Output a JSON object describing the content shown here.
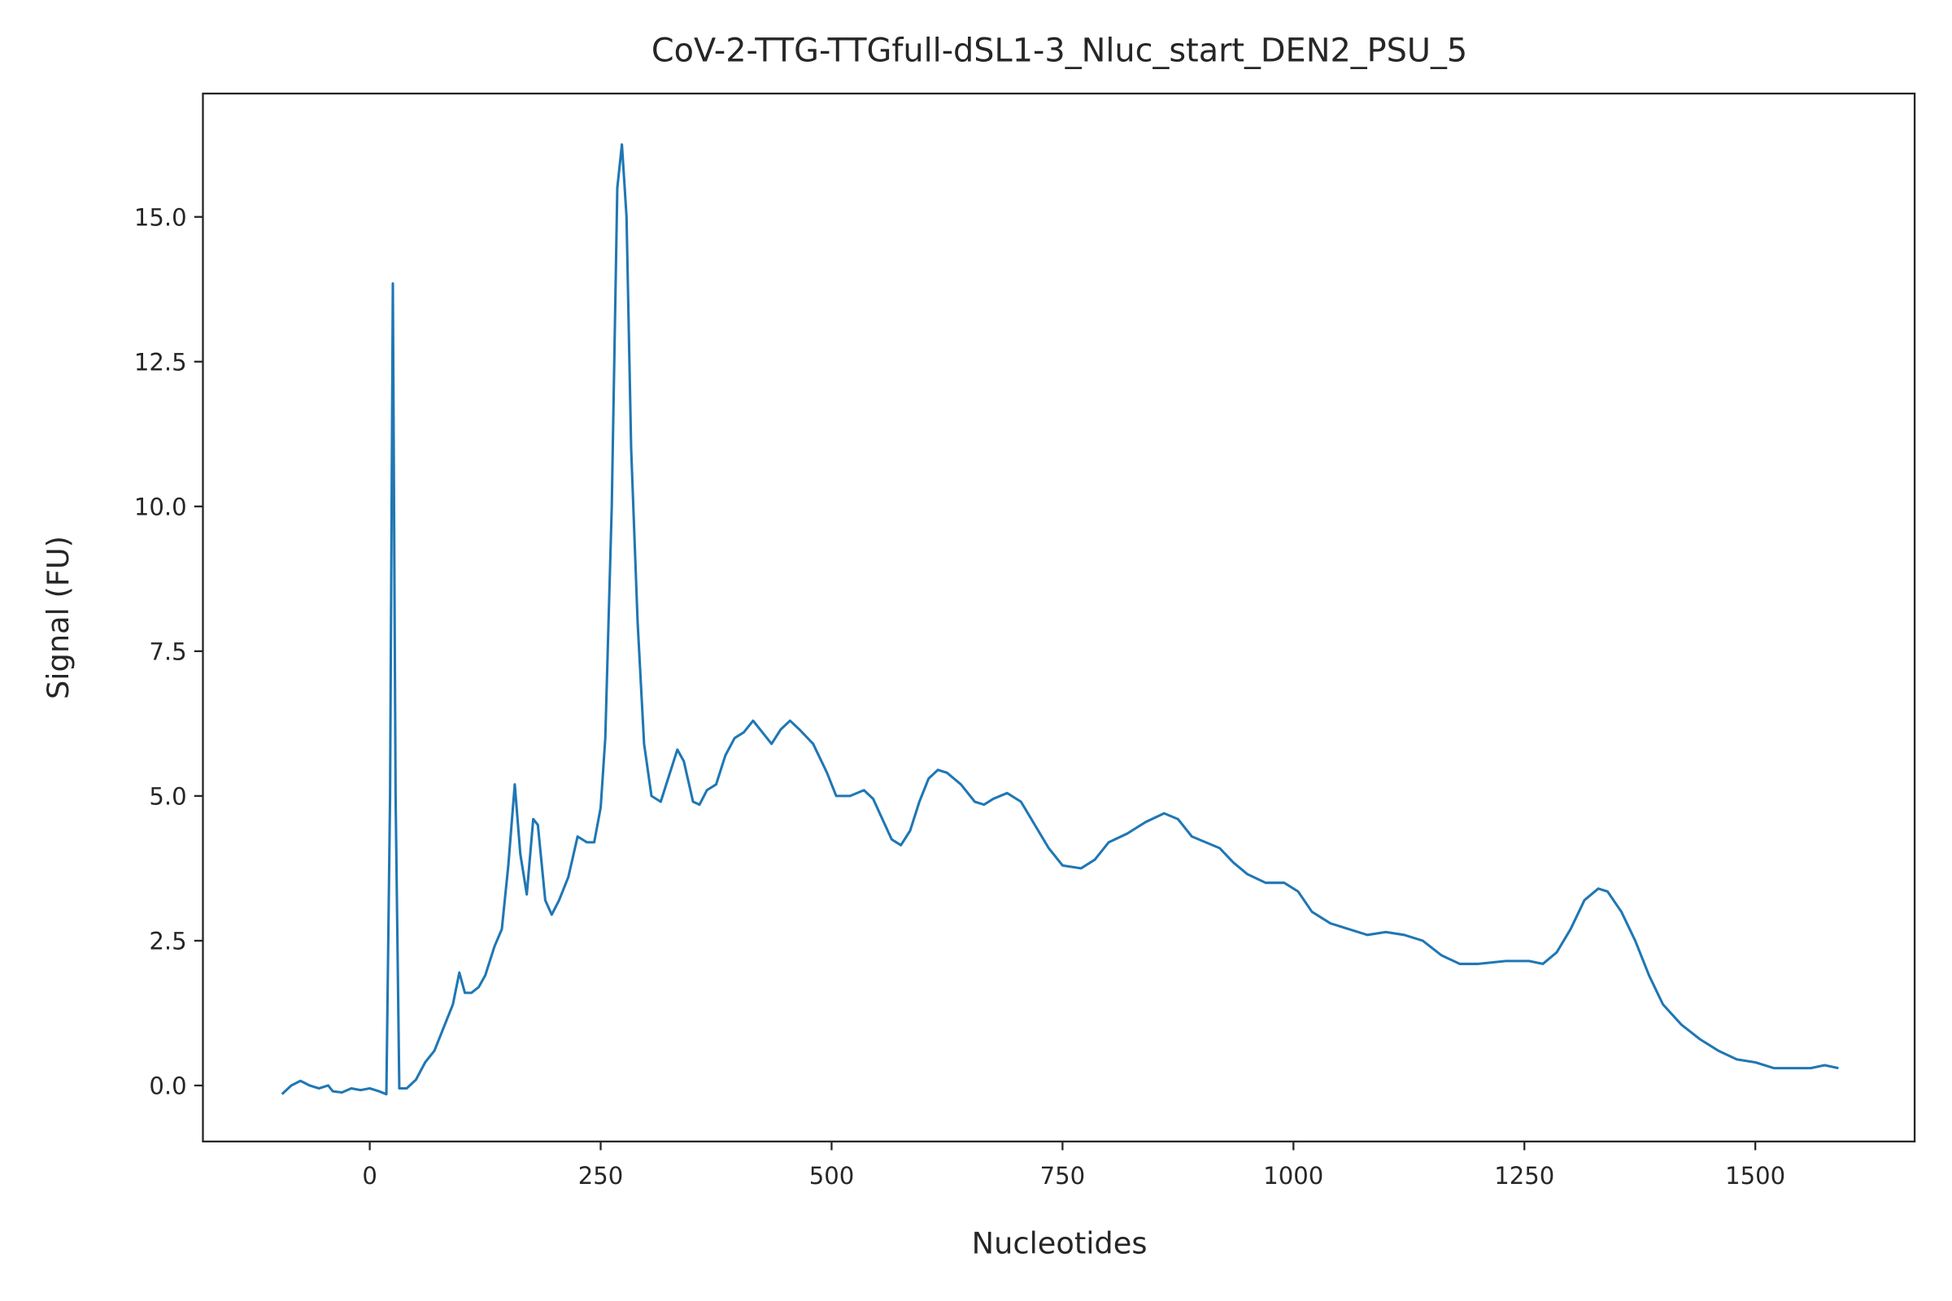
{
  "chart_data": {
    "type": "line",
    "title": "CoV-2-TTG-TTGfull-dSL1-3_Nluc_start_DEN2_PSU_5",
    "x_label": "Nucleotides",
    "y_label": "Signal (FU)",
    "xlim": [
      -180.6,
      1672.5
    ],
    "ylim": [
      -0.967,
      17.13
    ],
    "xticks": [
      0,
      250,
      500,
      750,
      1000,
      1250,
      1500
    ],
    "yticks": [
      {
        "value": 0,
        "label": "0.0"
      },
      2.5,
      {
        "value": 5,
        "label": "5.0"
      },
      7.5,
      {
        "value": 10,
        "label": "10.0"
      },
      12.5,
      {
        "value": 15,
        "label": "15.0"
      }
    ],
    "grid": false,
    "x": [
      -95,
      -85,
      -75,
      -65,
      -55,
      -45,
      -40,
      -30,
      -20,
      -10,
      0,
      10,
      18,
      22,
      25,
      28,
      32,
      40,
      50,
      60,
      70,
      80,
      90,
      97,
      103,
      110,
      118,
      125,
      135,
      143,
      150,
      157,
      163,
      170,
      177,
      182,
      190,
      197,
      205,
      215,
      225,
      235,
      243,
      250,
      255,
      262,
      268,
      273,
      278,
      283,
      290,
      297,
      305,
      315,
      325,
      333,
      340,
      350,
      357,
      365,
      375,
      385,
      395,
      405,
      415,
      425,
      435,
      445,
      455,
      465,
      480,
      495,
      505,
      520,
      535,
      545,
      555,
      565,
      575,
      585,
      595,
      605,
      615,
      625,
      640,
      655,
      665,
      675,
      690,
      705,
      720,
      735,
      750,
      770,
      785,
      800,
      820,
      840,
      860,
      875,
      890,
      905,
      920,
      935,
      950,
      970,
      990,
      1005,
      1020,
      1040,
      1060,
      1080,
      1100,
      1120,
      1140,
      1160,
      1180,
      1200,
      1230,
      1255,
      1270,
      1285,
      1300,
      1315,
      1330,
      1340,
      1355,
      1370,
      1385,
      1400,
      1420,
      1440,
      1460,
      1480,
      1500,
      1520,
      1540,
      1560,
      1575,
      1590
    ],
    "series": [
      {
        "name": "signal",
        "color": "#1f77b4",
        "values": [
          -0.15,
          0.0,
          0.08,
          0.0,
          -0.05,
          0.0,
          -0.1,
          -0.12,
          -0.05,
          -0.08,
          -0.05,
          -0.1,
          -0.15,
          5,
          13.85,
          5,
          -0.05,
          -0.05,
          0.1,
          0.4,
          0.6,
          1.0,
          1.4,
          1.95,
          1.6,
          1.6,
          1.7,
          1.9,
          2.4,
          2.7,
          3.8,
          5.2,
          4.0,
          3.3,
          4.6,
          4.5,
          3.2,
          2.95,
          3.2,
          3.6,
          4.3,
          4.2,
          4.2,
          4.8,
          6,
          10,
          15.5,
          16.25,
          15,
          11,
          8.0,
          5.9,
          5.0,
          4.9,
          5.4,
          5.8,
          5.6,
          4.9,
          4.85,
          5.1,
          5.2,
          5.7,
          6.0,
          6.1,
          6.3,
          6.1,
          5.9,
          6.15,
          6.3,
          6.15,
          5.9,
          5.4,
          5.0,
          5.0,
          5.1,
          4.95,
          4.6,
          4.25,
          4.15,
          4.4,
          4.9,
          5.3,
          5.45,
          5.4,
          5.2,
          4.9,
          4.85,
          4.95,
          5.05,
          4.9,
          4.5,
          4.1,
          3.8,
          3.75,
          3.9,
          4.2,
          4.35,
          4.55,
          4.7,
          4.6,
          4.3,
          4.2,
          4.1,
          3.85,
          3.65,
          3.5,
          3.5,
          3.35,
          3.0,
          2.8,
          2.7,
          2.6,
          2.65,
          2.6,
          2.5,
          2.25,
          2.1,
          2.1,
          2.15,
          2.15,
          2.1,
          2.3,
          2.7,
          3.2,
          3.4,
          3.35,
          3.0,
          2.5,
          1.9,
          1.4,
          1.05,
          0.8,
          0.6,
          0.45,
          0.4,
          0.3,
          0.3,
          0.3,
          0.35,
          0.3
        ]
      }
    ]
  }
}
